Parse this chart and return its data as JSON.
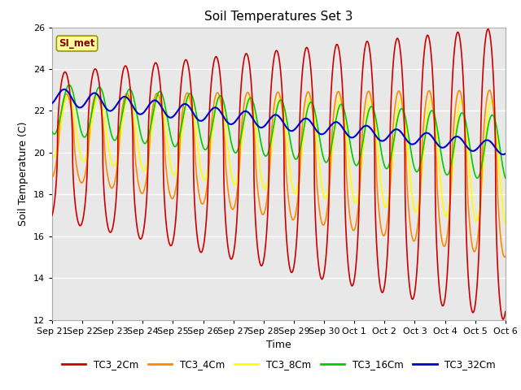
{
  "title": "Soil Temperatures Set 3",
  "xlabel": "Time",
  "ylabel": "Soil Temperature (C)",
  "ylim": [
    12,
    26
  ],
  "background_color": "#ffffff",
  "plot_bg_color": "#e8e8e8",
  "grid_color": "#ffffff",
  "annotation_text": "SI_met",
  "annotation_bg": "#ffff99",
  "annotation_border": "#999900",
  "series": {
    "TC3_2Cm": {
      "color": "#cc0000",
      "lw": 1.2
    },
    "TC3_4Cm": {
      "color": "#ff8800",
      "lw": 1.2
    },
    "TC3_8Cm": {
      "color": "#ffff00",
      "lw": 1.2
    },
    "TC3_16Cm": {
      "color": "#00cc00",
      "lw": 1.2
    },
    "TC3_32Cm": {
      "color": "#0000cc",
      "lw": 1.5
    }
  },
  "xtick_labels": [
    "Sep 21",
    "Sep 22",
    "Sep 23",
    "Sep 24",
    "Sep 25",
    "Sep 26",
    "Sep 27",
    "Sep 28",
    "Sep 29",
    "Sep 30",
    "Oct 1",
    "Oct 2",
    "Oct 3",
    "Oct 4",
    "Oct 5",
    "Oct 6"
  ],
  "xtick_positions": [
    0,
    1,
    2,
    3,
    4,
    5,
    6,
    7,
    8,
    9,
    10,
    11,
    12,
    13,
    14,
    15
  ],
  "yticks": [
    12,
    14,
    16,
    18,
    20,
    22,
    24,
    26
  ]
}
